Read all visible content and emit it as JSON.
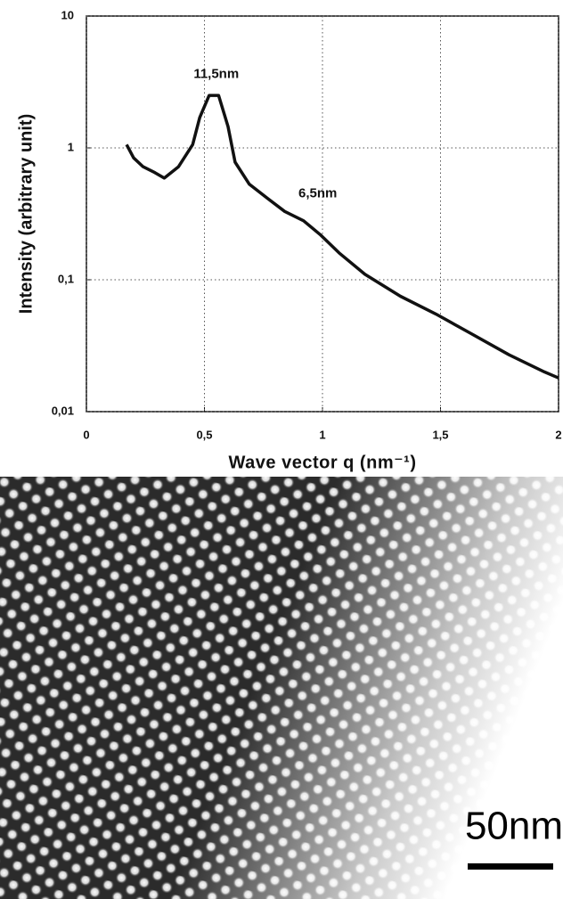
{
  "chart_data": {
    "type": "line",
    "xlabel": "Wave vector q (nm⁻¹)",
    "ylabel": "Intensity (arbitrary unit)",
    "yscale": "log",
    "grid": true,
    "x": [
      0.17,
      0.2,
      0.24,
      0.29,
      0.33,
      0.39,
      0.45,
      0.48,
      0.52,
      0.56,
      0.6,
      0.63,
      0.69,
      0.77,
      0.84,
      0.92,
      0.99,
      1.07,
      1.18,
      1.33,
      1.48,
      1.63,
      1.79,
      1.94,
      2.0
    ],
    "series": [
      {
        "color": "#111111",
        "values": [
          1.06,
          0.84,
          0.72,
          0.65,
          0.59,
          0.72,
          1.06,
          1.7,
          2.5,
          2.5,
          1.45,
          0.78,
          0.53,
          0.41,
          0.33,
          0.28,
          0.22,
          0.16,
          0.11,
          0.075,
          0.055,
          0.039,
          0.027,
          0.02,
          0.018
        ]
      }
    ],
    "xlim": [
      0,
      2
    ],
    "ylim": [
      0.01,
      10
    ],
    "xticks": [
      0,
      {
        "value": 0.5,
        "label": "0,5"
      },
      1,
      {
        "value": 1.5,
        "label": "1,5"
      },
      2
    ],
    "yticks": [
      {
        "value": 0.01,
        "label": "0,01"
      },
      {
        "value": 0.1,
        "label": "0,1"
      },
      1,
      10
    ],
    "annotations": [
      {
        "text": "11,5nm",
        "x": 0.55,
        "y": 3.6
      },
      {
        "text": "6,5nm",
        "x": 0.98,
        "y": 0.45
      }
    ]
  },
  "image": {
    "scale_bar": "50nm"
  }
}
